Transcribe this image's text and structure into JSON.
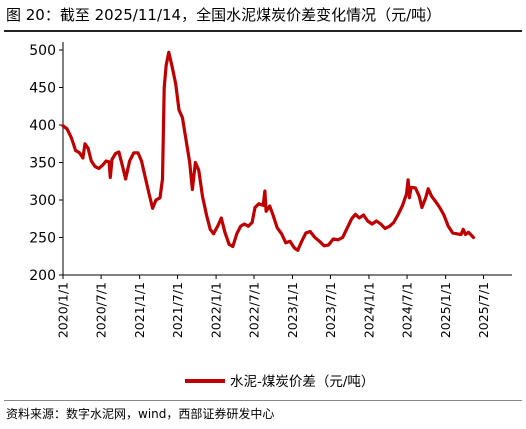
{
  "figure": {
    "title": "图 20：截至 2025/11/14，全国水泥煤炭价差变化情况（元/吨）",
    "source": "资料来源：数字水泥网，wind，西部证券研发中心"
  },
  "chart_data": {
    "type": "line",
    "title": "",
    "xlabel": "",
    "ylabel": "",
    "ylim": [
      200,
      500
    ],
    "yticks": [
      200,
      250,
      300,
      350,
      400,
      450,
      500
    ],
    "xlim": [
      "2020-01-01",
      "2025-11-14"
    ],
    "xticks": [
      "2020/1/1",
      "2020/7/1",
      "2021/1/1",
      "2021/7/1",
      "2022/1/1",
      "2022/7/1",
      "2023/1/1",
      "2023/7/1",
      "2024/1/1",
      "2024/7/1",
      "2025/1/1",
      "2025/7/1"
    ],
    "grid": false,
    "legend_position": "bottom-center",
    "series": [
      {
        "name": "水泥-煤炭价差（元/吨）",
        "color": "#c00000",
        "points": [
          [
            "2020-01-01",
            399
          ],
          [
            "2020-01-20",
            395
          ],
          [
            "2020-02-10",
            383
          ],
          [
            "2020-03-01",
            366
          ],
          [
            "2020-03-20",
            363
          ],
          [
            "2020-04-05",
            356
          ],
          [
            "2020-04-15",
            375
          ],
          [
            "2020-04-30",
            369
          ],
          [
            "2020-05-15",
            352
          ],
          [
            "2020-06-01",
            345
          ],
          [
            "2020-06-20",
            342
          ],
          [
            "2020-07-10",
            347
          ],
          [
            "2020-07-25",
            352
          ],
          [
            "2020-08-08",
            351
          ],
          [
            "2020-08-14",
            330
          ],
          [
            "2020-08-22",
            354
          ],
          [
            "2020-09-08",
            362
          ],
          [
            "2020-09-24",
            364
          ],
          [
            "2020-10-14",
            342
          ],
          [
            "2020-10-26",
            328
          ],
          [
            "2020-11-14",
            352
          ],
          [
            "2020-12-04",
            363
          ],
          [
            "2020-12-24",
            363
          ],
          [
            "2021-01-10",
            352
          ],
          [
            "2021-01-28",
            330
          ],
          [
            "2021-02-16",
            307
          ],
          [
            "2021-03-04",
            289
          ],
          [
            "2021-03-20",
            300
          ],
          [
            "2021-04-08",
            303
          ],
          [
            "2021-04-20",
            328
          ],
          [
            "2021-04-28",
            450
          ],
          [
            "2021-05-08",
            480
          ],
          [
            "2021-05-20",
            497
          ],
          [
            "2021-06-05",
            478
          ],
          [
            "2021-06-22",
            455
          ],
          [
            "2021-07-08",
            420
          ],
          [
            "2021-07-24",
            410
          ],
          [
            "2021-08-12",
            378
          ],
          [
            "2021-08-28",
            350
          ],
          [
            "2021-09-10",
            314
          ],
          [
            "2021-09-24",
            350
          ],
          [
            "2021-10-10",
            340
          ],
          [
            "2021-10-28",
            305
          ],
          [
            "2021-11-16",
            280
          ],
          [
            "2021-12-04",
            261
          ],
          [
            "2021-12-20",
            255
          ],
          [
            "2022-01-10",
            266
          ],
          [
            "2022-01-26",
            276
          ],
          [
            "2022-02-12",
            257
          ],
          [
            "2022-03-04",
            241
          ],
          [
            "2022-03-22",
            238
          ],
          [
            "2022-04-10",
            255
          ],
          [
            "2022-04-28",
            265
          ],
          [
            "2022-05-16",
            268
          ],
          [
            "2022-06-04",
            265
          ],
          [
            "2022-06-22",
            270
          ],
          [
            "2022-07-06",
            290
          ],
          [
            "2022-07-24",
            295
          ],
          [
            "2022-08-14",
            293
          ],
          [
            "2022-08-22",
            312
          ],
          [
            "2022-08-28",
            285
          ],
          [
            "2022-09-14",
            292
          ],
          [
            "2022-09-30",
            280
          ],
          [
            "2022-10-20",
            263
          ],
          [
            "2022-11-10",
            255
          ],
          [
            "2022-11-30",
            243
          ],
          [
            "2022-12-20",
            245
          ],
          [
            "2023-01-10",
            236
          ],
          [
            "2023-01-26",
            233
          ],
          [
            "2023-02-14",
            245
          ],
          [
            "2023-03-06",
            256
          ],
          [
            "2023-03-26",
            258
          ],
          [
            "2023-04-18",
            250
          ],
          [
            "2023-05-10",
            245
          ],
          [
            "2023-06-01",
            239
          ],
          [
            "2023-06-22",
            240
          ],
          [
            "2023-07-14",
            248
          ],
          [
            "2023-08-06",
            247
          ],
          [
            "2023-08-28",
            250
          ],
          [
            "2023-09-18",
            262
          ],
          [
            "2023-10-10",
            275
          ],
          [
            "2023-10-28",
            281
          ],
          [
            "2023-11-16",
            276
          ],
          [
            "2023-12-06",
            280
          ],
          [
            "2023-12-26",
            272
          ],
          [
            "2024-01-16",
            268
          ],
          [
            "2024-02-06",
            272
          ],
          [
            "2024-02-26",
            268
          ],
          [
            "2024-03-18",
            262
          ],
          [
            "2024-04-08",
            265
          ],
          [
            "2024-04-28",
            270
          ],
          [
            "2024-05-18",
            280
          ],
          [
            "2024-06-08",
            292
          ],
          [
            "2024-06-28",
            308
          ],
          [
            "2024-07-06",
            327
          ],
          [
            "2024-07-12",
            303
          ],
          [
            "2024-07-20",
            317
          ],
          [
            "2024-08-10",
            316
          ],
          [
            "2024-08-28",
            305
          ],
          [
            "2024-09-10",
            290
          ],
          [
            "2024-09-28",
            303
          ],
          [
            "2024-10-10",
            315
          ],
          [
            "2024-10-26",
            305
          ],
          [
            "2024-11-14",
            298
          ],
          [
            "2024-12-04",
            290
          ],
          [
            "2024-12-24",
            280
          ],
          [
            "2025-01-14",
            265
          ],
          [
            "2025-02-04",
            256
          ],
          [
            "2025-02-24",
            255
          ],
          [
            "2025-03-16",
            254
          ],
          [
            "2025-03-26",
            261
          ],
          [
            "2025-04-06",
            254
          ],
          [
            "2025-04-20",
            257
          ],
          [
            "2025-05-04",
            253
          ],
          [
            "2025-05-14",
            250
          ]
        ]
      }
    ]
  }
}
